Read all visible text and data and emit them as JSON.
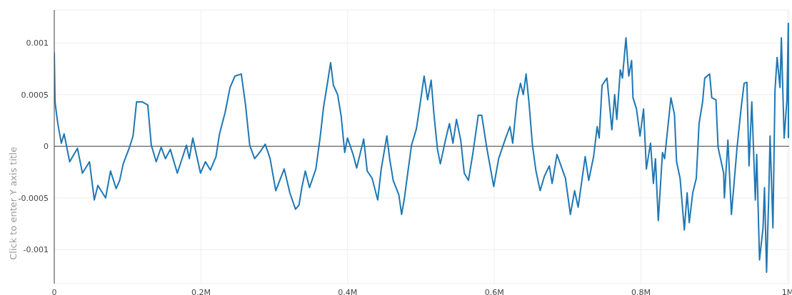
{
  "chart_data": {
    "type": "line",
    "ylabel": "Click to enter Y axis title",
    "xlim": [
      0,
      1002000
    ],
    "ylim": [
      -0.00133,
      0.00132
    ],
    "xticks": [
      0,
      {
        "value": 200000,
        "label": "0.2M"
      },
      {
        "value": 400000,
        "label": "0.4M"
      },
      {
        "value": 600000,
        "label": "0.6M"
      },
      {
        "value": 800000,
        "label": "0.8M"
      },
      {
        "value": 1000000,
        "label": "1M"
      }
    ],
    "yticks": [
      -0.001,
      -0.0005,
      0,
      0.0005,
      0.001
    ],
    "grid": true,
    "marker": "none",
    "line_style": "solid",
    "ref_lines": [
      {
        "axis": "y",
        "value": 0,
        "color": "#444444"
      }
    ],
    "x": [
      0,
      1000,
      4800,
      9600,
      13400,
      21000,
      31600,
      38400,
      48000,
      54600,
      59400,
      70000,
      76700,
      84400,
      89200,
      94000,
      102600,
      107400,
      112200,
      119800,
      127500,
      132300,
      139000,
      145700,
      151500,
      158200,
      167800,
      180200,
      184100,
      188900,
      199400,
      206100,
      212800,
      220500,
      225300,
      233000,
      239700,
      246400,
      255000,
      260800,
      266500,
      273200,
      280000,
      287600,
      294300,
      302000,
      313500,
      321200,
      328900,
      333700,
      337500,
      342300,
      348000,
      356700,
      362400,
      367200,
      372000,
      376800,
      380600,
      386400,
      391200,
      396000,
      399800,
      407500,
      412300,
      421900,
      426700,
      433400,
      441000,
      445800,
      453500,
      457300,
      462100,
      469800,
      473600,
      477500,
      482300,
      487100,
      493800,
      498600,
      504300,
      509100,
      513900,
      517700,
      522500,
      526400,
      534000,
      538800,
      543600,
      548400,
      554200,
      559000,
      564700,
      570500,
      578100,
      582900,
      589600,
      599200,
      605900,
      615500,
      621300,
      625100,
      630900,
      635700,
      639500,
      643300,
      647200,
      652000,
      656800,
      662500,
      668300,
      675000,
      678800,
      685500,
      697000,
      703700,
      709500,
      714300,
      723900,
      728700,
      735400,
      740200,
      743000,
      746900,
      753600,
      760300,
      764100,
      767000,
      771800,
      774700,
      779500,
      783300,
      787200,
      789100,
      793900,
      798700,
      803500,
      807300,
      813000,
      816900,
      819700,
      823600,
      829300,
      832200,
      835100,
      840800,
      845600,
      848500,
      853300,
      859100,
      862900,
      865800,
      870600,
      875400,
      879200,
      884000,
      886900,
      893600,
      896500,
      902200,
      905100,
      912700,
      913700,
      918500,
      923300,
      931000,
      936700,
      940600,
      944400,
      947300,
      951100,
      955900,
      957800,
      961600,
      966400,
      968400,
      971200,
      974100,
      976000,
      979900,
      982700,
      985600,
      989500,
      991400,
      995200,
      999000,
      1000900,
      1001000
    ],
    "series": [
      {
        "color": "#1f77b4",
        "values": [
          0.00091,
          0.00043,
          0.00022,
          3e-05,
          0.00012,
          -0.00015,
          -2e-05,
          -0.00026,
          -0.00015,
          -0.00052,
          -0.00038,
          -0.0005,
          -0.00024,
          -0.00041,
          -0.00033,
          -0.00017,
          -1e-05,
          0.0001,
          0.00043,
          0.00043,
          0.0004,
          1e-05,
          -0.00015,
          -1e-05,
          -0.00012,
          -3e-05,
          -0.00026,
          1e-05,
          -0.00012,
          8e-05,
          -0.00026,
          -0.00015,
          -0.00023,
          -0.0001,
          0.00012,
          0.00033,
          0.00057,
          0.00068,
          0.0007,
          0.0004,
          1e-05,
          -0.00012,
          -6e-05,
          2e-05,
          -0.00012,
          -0.00043,
          -0.00022,
          -0.00045,
          -0.00061,
          -0.00057,
          -0.0004,
          -0.00024,
          -0.0004,
          -0.00022,
          8e-05,
          0.00038,
          0.00059,
          0.00081,
          0.00059,
          0.0005,
          0.00029,
          -6e-05,
          8e-05,
          -8e-05,
          -0.00021,
          7e-05,
          -0.00024,
          -0.00031,
          -0.00052,
          -0.00022,
          0.0001,
          -0.00012,
          -0.00033,
          -0.00047,
          -0.00066,
          -0.0005,
          -0.00024,
          1e-05,
          0.00017,
          0.0004,
          0.00068,
          0.00045,
          0.00064,
          0.00031,
          -3e-05,
          -0.00017,
          8e-05,
          0.00022,
          3e-05,
          0.00026,
          6e-05,
          -0.00026,
          -0.00033,
          -8e-05,
          0.0003,
          0.0003,
          -1e-05,
          -0.00039,
          -0.00012,
          8e-05,
          0.00019,
          3e-05,
          0.00045,
          0.00061,
          0.0005,
          0.0007,
          0.00043,
          1e-05,
          -0.00024,
          -0.00043,
          -0.00029,
          -0.00019,
          -0.00036,
          -8e-05,
          -0.00031,
          -0.00066,
          -0.00043,
          -0.00059,
          -0.0001,
          -0.00033,
          -0.0001,
          0.00019,
          8e-05,
          0.00059,
          0.00066,
          0.00016,
          0.0005,
          0.00026,
          0.00074,
          0.00066,
          0.00105,
          0.00068,
          0.00083,
          0.00047,
          0.00036,
          0.0001,
          0.00036,
          -0.00022,
          3e-05,
          -0.00036,
          -0.00012,
          -0.00072,
          -6e-05,
          -0.00012,
          8e-05,
          0.00047,
          0.00031,
          -0.00015,
          -0.00031,
          -0.00081,
          -0.00045,
          -0.00074,
          -0.00045,
          -0.00031,
          0.00022,
          0.00043,
          0.00066,
          0.0007,
          0.00047,
          0.00045,
          -1e-05,
          -0.00026,
          -0.0005,
          6e-05,
          -0.00066,
          -1e-05,
          0.00038,
          0.00061,
          0.00062,
          -0.00019,
          0.00043,
          -0.00052,
          -8e-05,
          -0.0011,
          -0.00079,
          -0.0004,
          -0.00122,
          -0.0005,
          0.0001,
          -0.00079,
          0.00054,
          0.00086,
          0.00057,
          0.00105,
          8e-05,
          0.00045,
          0.00119,
          8e-05
        ]
      }
    ]
  }
}
